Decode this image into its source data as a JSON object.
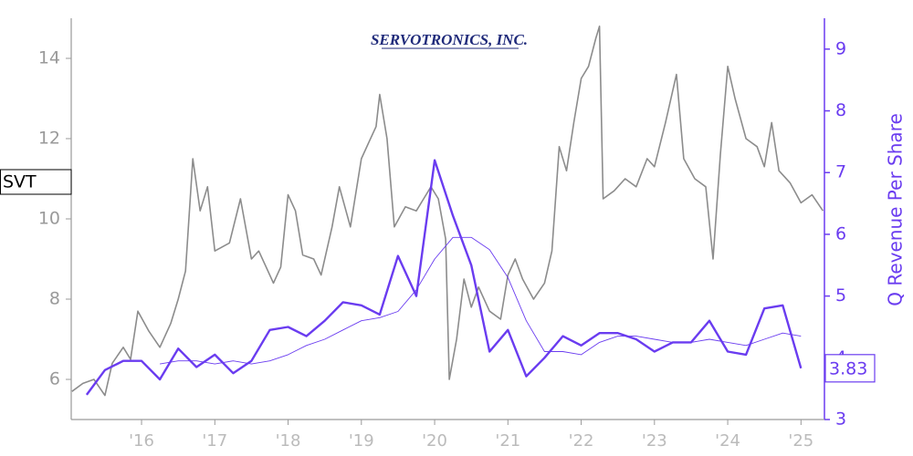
{
  "chart_data": {
    "type": "line",
    "logo": "SERVOTRONICS, INC.",
    "y2label": "Q Revenue Per Share",
    "xlim": [
      2015.04,
      2025.32
    ],
    "xticks": [
      {
        "value": 2016,
        "label": "'16"
      },
      {
        "value": 2017,
        "label": "'17"
      },
      {
        "value": 2018,
        "label": "'18"
      },
      {
        "value": 2019,
        "label": "'19"
      },
      {
        "value": 2020,
        "label": "'20"
      },
      {
        "value": 2021,
        "label": "'21"
      },
      {
        "value": 2022,
        "label": "'22"
      },
      {
        "value": 2023,
        "label": "'23"
      },
      {
        "value": 2024,
        "label": "'24"
      },
      {
        "value": 2025,
        "label": "'25"
      }
    ],
    "ylim": [
      5,
      15
    ],
    "yticks": [
      6,
      8,
      10,
      12,
      14
    ],
    "y2lim": [
      3,
      9.5
    ],
    "y2ticks": [
      3,
      4,
      5,
      6,
      7,
      8,
      9
    ],
    "series": [
      {
        "name": "SVT",
        "color": "#8c8c8c",
        "width": 1.6,
        "x": [
          2015.05,
          2015.2,
          2015.35,
          2015.5,
          2015.6,
          2015.75,
          2015.85,
          2015.95,
          2016.1,
          2016.25,
          2016.4,
          2016.5,
          2016.6,
          2016.7,
          2016.8,
          2016.9,
          2017.0,
          2017.2,
          2017.35,
          2017.5,
          2017.6,
          2017.7,
          2017.8,
          2017.9,
          2018.0,
          2018.1,
          2018.2,
          2018.35,
          2018.45,
          2018.6,
          2018.7,
          2018.85,
          2019.0,
          2019.1,
          2019.2,
          2019.25,
          2019.35,
          2019.45,
          2019.6,
          2019.75,
          2019.85,
          2019.95,
          2020.05,
          2020.15,
          2020.2,
          2020.3,
          2020.4,
          2020.5,
          2020.6,
          2020.75,
          2020.9,
          2021.0,
          2021.1,
          2021.2,
          2021.35,
          2021.5,
          2021.6,
          2021.7,
          2021.8,
          2021.9,
          2022.0,
          2022.1,
          2022.2,
          2022.25,
          2022.3,
          2022.45,
          2022.6,
          2022.75,
          2022.9,
          2023.0,
          2023.15,
          2023.3,
          2023.4,
          2023.55,
          2023.7,
          2023.8,
          2023.9,
          2024.0,
          2024.1,
          2024.25,
          2024.4,
          2024.5,
          2024.6,
          2024.7,
          2024.85,
          2025.0,
          2025.15,
          2025.3
        ],
        "values": [
          5.7,
          5.9,
          6.0,
          5.6,
          6.4,
          6.8,
          6.5,
          7.7,
          7.2,
          6.8,
          7.4,
          8.0,
          8.7,
          11.5,
          10.2,
          10.8,
          9.2,
          9.4,
          10.5,
          9.0,
          9.2,
          8.8,
          8.4,
          8.8,
          10.6,
          10.2,
          9.1,
          9.0,
          8.6,
          9.8,
          10.8,
          9.8,
          11.5,
          11.9,
          12.3,
          13.1,
          12.0,
          9.8,
          10.3,
          10.2,
          10.5,
          10.8,
          10.5,
          9.5,
          6.0,
          7.0,
          8.5,
          7.8,
          8.3,
          7.7,
          7.5,
          8.6,
          9.0,
          8.5,
          8.0,
          8.4,
          9.2,
          11.8,
          11.2,
          12.4,
          13.5,
          13.8,
          14.5,
          14.8,
          10.5,
          10.7,
          11.0,
          10.8,
          11.5,
          11.3,
          12.4,
          13.6,
          11.5,
          11.0,
          10.8,
          9.0,
          11.6,
          13.8,
          13.0,
          12.0,
          11.8,
          11.3,
          12.4,
          11.2,
          10.9,
          10.4,
          10.6,
          10.2
        ]
      },
      {
        "axis": "y2",
        "color": "#6a3cf0",
        "width": 2.4,
        "x": [
          2015.25,
          2015.5,
          2015.75,
          2016.0,
          2016.25,
          2016.5,
          2016.75,
          2017.0,
          2017.25,
          2017.5,
          2017.75,
          2018.0,
          2018.25,
          2018.5,
          2018.75,
          2019.0,
          2019.25,
          2019.5,
          2019.75,
          2020.0,
          2020.25,
          2020.5,
          2020.75,
          2021.0,
          2021.25,
          2021.5,
          2021.75,
          2022.0,
          2022.25,
          2022.5,
          2022.75,
          2023.0,
          2023.25,
          2023.5,
          2023.75,
          2024.0,
          2024.25,
          2024.5,
          2024.75,
          2025.0
        ],
        "values": [
          3.4,
          3.8,
          3.95,
          3.95,
          3.65,
          4.15,
          3.85,
          4.05,
          3.75,
          3.95,
          4.45,
          4.5,
          4.35,
          4.6,
          4.9,
          4.85,
          4.7,
          5.65,
          5.0,
          7.2,
          6.3,
          5.5,
          4.1,
          4.45,
          3.7,
          4.0,
          4.35,
          4.2,
          4.4,
          4.4,
          4.3,
          4.1,
          4.25,
          4.25,
          4.6,
          4.1,
          4.05,
          4.8,
          4.85,
          3.83
        ]
      },
      {
        "axis": "y2",
        "color": "#6a3cf0",
        "width": 0.9,
        "x": [
          2016.25,
          2016.5,
          2016.75,
          2017.0,
          2017.25,
          2017.5,
          2017.75,
          2018.0,
          2018.25,
          2018.5,
          2018.75,
          2019.0,
          2019.25,
          2019.5,
          2019.75,
          2020.0,
          2020.25,
          2020.5,
          2020.75,
          2021.0,
          2021.25,
          2021.5,
          2021.75,
          2022.0,
          2022.25,
          2022.5,
          2022.75,
          2023.0,
          2023.25,
          2023.5,
          2023.75,
          2024.0,
          2024.25,
          2024.5,
          2024.75,
          2025.0
        ],
        "values": [
          3.9,
          3.95,
          3.95,
          3.9,
          3.95,
          3.9,
          3.95,
          4.05,
          4.2,
          4.3,
          4.45,
          4.6,
          4.65,
          4.75,
          5.1,
          5.6,
          5.95,
          5.95,
          5.75,
          5.3,
          4.6,
          4.1,
          4.1,
          4.05,
          4.25,
          4.35,
          4.35,
          4.3,
          4.25,
          4.25,
          4.3,
          4.25,
          4.2,
          4.3,
          4.4,
          4.35
        ]
      }
    ]
  }
}
